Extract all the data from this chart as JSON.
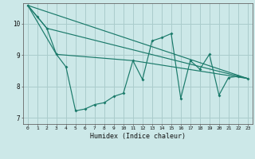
{
  "title": "",
  "xlabel": "Humidex (Indice chaleur)",
  "background_color": "#cce8e8",
  "grid_color": "#aacccc",
  "line_color": "#1a7a6a",
  "xlim": [
    -0.5,
    23.5
  ],
  "ylim": [
    6.8,
    10.65
  ],
  "yticks": [
    7,
    8,
    9,
    10
  ],
  "xticks": [
    0,
    1,
    2,
    3,
    4,
    5,
    6,
    7,
    8,
    9,
    10,
    11,
    12,
    13,
    14,
    15,
    16,
    17,
    18,
    19,
    20,
    21,
    22,
    23
  ],
  "series": [
    [
      0,
      10.58
    ],
    [
      1,
      10.22
    ],
    [
      2,
      9.85
    ],
    [
      3,
      9.02
    ],
    [
      4,
      8.62
    ],
    [
      5,
      7.22
    ],
    [
      6,
      7.28
    ],
    [
      7,
      7.42
    ],
    [
      8,
      7.48
    ],
    [
      9,
      7.68
    ],
    [
      10,
      7.78
    ],
    [
      11,
      8.82
    ],
    [
      12,
      8.22
    ],
    [
      13,
      9.45
    ],
    [
      14,
      9.55
    ],
    [
      15,
      9.68
    ],
    [
      16,
      7.62
    ],
    [
      17,
      8.82
    ],
    [
      18,
      8.55
    ],
    [
      19,
      9.02
    ],
    [
      20,
      7.72
    ],
    [
      21,
      8.28
    ],
    [
      22,
      8.32
    ],
    [
      23,
      8.25
    ]
  ],
  "line2": [
    [
      0,
      10.58
    ],
    [
      23,
      8.25
    ]
  ],
  "line3": [
    [
      0,
      10.58
    ],
    [
      2,
      9.85
    ],
    [
      23,
      8.25
    ]
  ],
  "line4": [
    [
      0,
      10.58
    ],
    [
      3,
      9.02
    ],
    [
      11,
      8.82
    ],
    [
      23,
      8.25
    ]
  ]
}
